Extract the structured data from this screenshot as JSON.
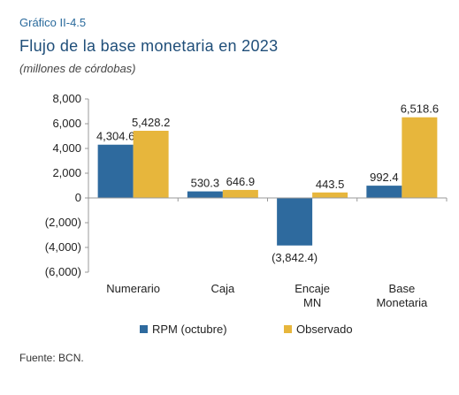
{
  "header": {
    "label": "Gráfico II-4.5",
    "title": "Flujo de la base monetaria en 2023",
    "subtitle": "(millones de córdobas)"
  },
  "footer": {
    "source": "Fuente: BCN."
  },
  "colors": {
    "rpm": "#2e6a9e",
    "observado": "#e7b63c",
    "axis": "#999999"
  },
  "chart_data": {
    "type": "bar",
    "categories": [
      [
        "Numerario"
      ],
      [
        "Caja"
      ],
      [
        "Encaje",
        "MN"
      ],
      [
        "Base",
        "Monetaria"
      ]
    ],
    "series": [
      {
        "name": "RPM (octubre)",
        "values": [
          4304.6,
          530.3,
          -3842.4,
          992.4
        ],
        "labels": [
          "4,304.6",
          "530.3",
          "(3,842.4)",
          "992.4"
        ]
      },
      {
        "name": "Observado",
        "values": [
          5428.2,
          646.9,
          443.5,
          6518.6
        ],
        "labels": [
          "5,428.2",
          "646.9",
          "443.5",
          "6,518.6"
        ]
      }
    ],
    "ylim": [
      -6000,
      8000
    ],
    "yticks": [
      8000,
      6000,
      4000,
      2000,
      0,
      -2000,
      -4000,
      -6000
    ],
    "ytick_labels": [
      "8,000",
      "6,000",
      "4,000",
      "2,000",
      "0",
      "(2,000)",
      "(4,000)",
      "(6,000)"
    ],
    "grid": false,
    "legend": "bottom"
  }
}
